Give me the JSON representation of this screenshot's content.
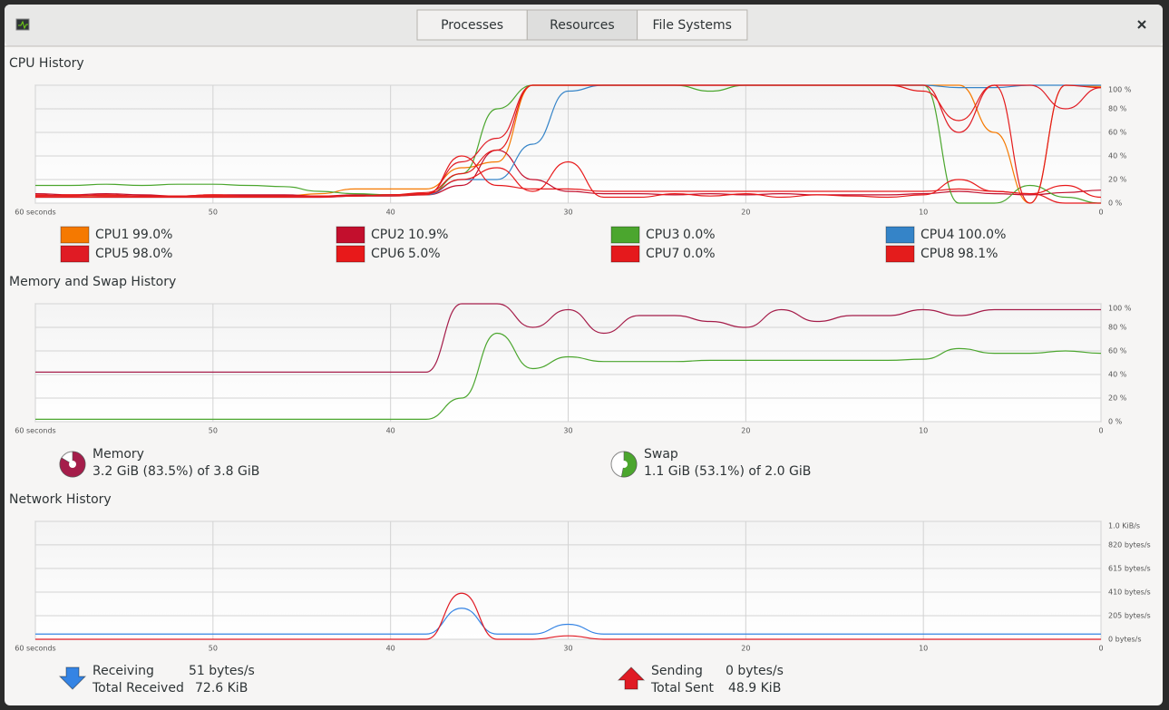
{
  "window": {
    "tabs": [
      "Processes",
      "Resources",
      "File Systems"
    ],
    "active_tab": 1
  },
  "chart_data": [
    {
      "type": "line",
      "title": "CPU History",
      "x": [
        60,
        58,
        56,
        54,
        52,
        50,
        48,
        46,
        44,
        42,
        40,
        38,
        36,
        34,
        32,
        30,
        28,
        26,
        24,
        22,
        20,
        18,
        16,
        14,
        12,
        10,
        8,
        6,
        4,
        2,
        0
      ],
      "xlim": [
        60,
        0
      ],
      "xticks": [
        {
          "value": 60,
          "label": "60 seconds"
        },
        50,
        40,
        30,
        20,
        10,
        0
      ],
      "ylim": [
        0,
        100
      ],
      "yticks": [
        {
          "value": 0,
          "label": "0 %"
        },
        {
          "value": 20,
          "label": "20 %"
        },
        {
          "value": 40,
          "label": "40 %"
        },
        {
          "value": 60,
          "label": "60 %"
        },
        {
          "value": 80,
          "label": "80 %"
        },
        {
          "value": 100,
          "label": "100 %"
        }
      ],
      "grid": true,
      "series": [
        {
          "name": "CPU1",
          "legend_value": "99.0%",
          "color": "#f57900",
          "values": [
            6,
            6,
            6,
            6,
            6,
            6,
            6,
            6,
            8,
            12,
            12,
            12,
            30,
            35,
            100,
            100,
            100,
            100,
            100,
            100,
            100,
            100,
            100,
            100,
            100,
            100,
            100,
            60,
            0,
            100,
            99
          ]
        },
        {
          "name": "CPU2",
          "legend_value": "10.9%",
          "color": "#c30f2d",
          "values": [
            8,
            7,
            8,
            7,
            6,
            7,
            7,
            7,
            6,
            7,
            7,
            7,
            15,
            45,
            20,
            10,
            8,
            8,
            7,
            8,
            7,
            8,
            7,
            7,
            7,
            8,
            10,
            8,
            7,
            9,
            11
          ]
        },
        {
          "name": "CPU3",
          "legend_value": "0.0%",
          "color": "#4ba62e",
          "values": [
            15,
            15,
            16,
            15,
            16,
            16,
            15,
            14,
            10,
            8,
            7,
            7,
            25,
            80,
            100,
            100,
            100,
            100,
            100,
            95,
            100,
            100,
            100,
            100,
            100,
            100,
            0,
            0,
            15,
            5,
            0
          ]
        },
        {
          "name": "CPU4",
          "legend_value": "100.0%",
          "color": "#3584c8",
          "values": [
            5,
            5,
            5,
            5,
            5,
            5,
            5,
            5,
            5,
            6,
            6,
            7,
            20,
            20,
            50,
            95,
            100,
            100,
            100,
            100,
            100,
            100,
            100,
            100,
            100,
            100,
            98,
            98,
            100,
            100,
            100
          ]
        },
        {
          "name": "CPU5",
          "legend_value": "98.0%",
          "color": "#e01b24",
          "values": [
            6,
            6,
            7,
            6,
            6,
            6,
            6,
            6,
            6,
            6,
            7,
            8,
            35,
            55,
            100,
            100,
            100,
            100,
            100,
            100,
            100,
            100,
            100,
            100,
            100,
            100,
            60,
            100,
            100,
            80,
            98
          ]
        },
        {
          "name": "CPU6",
          "legend_value": "5.0%",
          "color": "#e8191a",
          "values": [
            6,
            7,
            6,
            6,
            6,
            7,
            6,
            6,
            6,
            6,
            7,
            8,
            20,
            30,
            10,
            35,
            5,
            5,
            8,
            6,
            8,
            5,
            7,
            6,
            5,
            7,
            20,
            10,
            8,
            15,
            5
          ]
        },
        {
          "name": "CPU7",
          "legend_value": "0.0%",
          "color": "#e5191c",
          "values": [
            5,
            5,
            5,
            5,
            5,
            5,
            5,
            5,
            5,
            6,
            6,
            7,
            40,
            15,
            12,
            12,
            10,
            10,
            10,
            10,
            10,
            10,
            10,
            10,
            10,
            10,
            12,
            10,
            8,
            0,
            0
          ]
        },
        {
          "name": "CPU8",
          "legend_value": "98.1%",
          "color": "#e41c1c",
          "values": [
            7,
            6,
            7,
            6,
            6,
            6,
            6,
            6,
            6,
            6,
            7,
            9,
            25,
            45,
            100,
            100,
            100,
            100,
            100,
            100,
            100,
            100,
            100,
            100,
            100,
            95,
            70,
            100,
            0,
            100,
            98
          ]
        }
      ]
    },
    {
      "type": "line",
      "title": "Memory and Swap History",
      "x": [
        60,
        58,
        56,
        54,
        52,
        50,
        48,
        46,
        44,
        42,
        40,
        38,
        36,
        34,
        32,
        30,
        28,
        26,
        24,
        22,
        20,
        18,
        16,
        14,
        12,
        10,
        8,
        6,
        4,
        2,
        0
      ],
      "xlim": [
        60,
        0
      ],
      "xticks": [
        {
          "value": 60,
          "label": "60 seconds"
        },
        50,
        40,
        30,
        20,
        10,
        0
      ],
      "ylim": [
        0,
        100
      ],
      "yticks": [
        {
          "value": 0,
          "label": "0 %"
        },
        {
          "value": 20,
          "label": "20 %"
        },
        {
          "value": 40,
          "label": "40 %"
        },
        {
          "value": 60,
          "label": "60 %"
        },
        {
          "value": 80,
          "label": "80 %"
        },
        {
          "value": 100,
          "label": "100 %"
        }
      ],
      "grid": true,
      "series": [
        {
          "name": "Memory",
          "detail": "3.2 GiB (83.5%) of 3.8 GiB",
          "percent": 83.5,
          "color": "#a51d4a",
          "values": [
            42,
            42,
            42,
            42,
            42,
            42,
            42,
            42,
            42,
            42,
            42,
            42,
            100,
            100,
            80,
            95,
            75,
            90,
            90,
            85,
            80,
            95,
            85,
            90,
            90,
            95,
            90,
            95,
            95,
            95,
            95
          ]
        },
        {
          "name": "Swap",
          "detail": "1.1 GiB (53.1%) of 2.0 GiB",
          "percent": 53.1,
          "color": "#4ba62e",
          "values": [
            2,
            2,
            2,
            2,
            2,
            2,
            2,
            2,
            2,
            2,
            2,
            2,
            20,
            75,
            45,
            55,
            51,
            51,
            51,
            52,
            52,
            52,
            52,
            52,
            52,
            53,
            62,
            58,
            58,
            60,
            58
          ]
        }
      ]
    },
    {
      "type": "line",
      "title": "Network History",
      "x": [
        60,
        58,
        56,
        54,
        52,
        50,
        48,
        46,
        44,
        42,
        40,
        38,
        36,
        34,
        32,
        30,
        28,
        26,
        24,
        22,
        20,
        18,
        16,
        14,
        12,
        10,
        8,
        6,
        4,
        2,
        0
      ],
      "xlim": [
        60,
        0
      ],
      "xticks": [
        {
          "value": 60,
          "label": "60 seconds"
        },
        50,
        40,
        30,
        20,
        10,
        0
      ],
      "ylim": [
        0,
        1024
      ],
      "yticks": [
        {
          "value": 0,
          "label": "0 bytes/s"
        },
        {
          "value": 205,
          "label": "205 bytes/s"
        },
        {
          "value": 410,
          "label": "410 bytes/s"
        },
        {
          "value": 615,
          "label": "615 bytes/s"
        },
        {
          "value": 820,
          "label": "820 bytes/s"
        },
        {
          "value": 1024,
          "label": "1.0 KiB/s"
        }
      ],
      "grid": true,
      "series": [
        {
          "name": "Receiving",
          "rate": "51 bytes/s",
          "total_label": "Total Received",
          "total": "72.6 KiB",
          "color": "#3584e4",
          "values": [
            45,
            45,
            45,
            45,
            45,
            45,
            45,
            45,
            45,
            45,
            45,
            45,
            270,
            45,
            45,
            130,
            45,
            45,
            45,
            45,
            45,
            45,
            45,
            45,
            45,
            45,
            45,
            45,
            45,
            45,
            45
          ]
        },
        {
          "name": "Sending",
          "rate": "0 bytes/s",
          "total_label": "Total Sent",
          "total": "48.9 KiB",
          "color": "#e01b24",
          "values": [
            0,
            0,
            0,
            0,
            0,
            0,
            0,
            0,
            0,
            0,
            0,
            0,
            400,
            0,
            0,
            30,
            0,
            0,
            0,
            0,
            0,
            0,
            0,
            0,
            0,
            0,
            0,
            0,
            0,
            0,
            0
          ]
        }
      ]
    }
  ]
}
